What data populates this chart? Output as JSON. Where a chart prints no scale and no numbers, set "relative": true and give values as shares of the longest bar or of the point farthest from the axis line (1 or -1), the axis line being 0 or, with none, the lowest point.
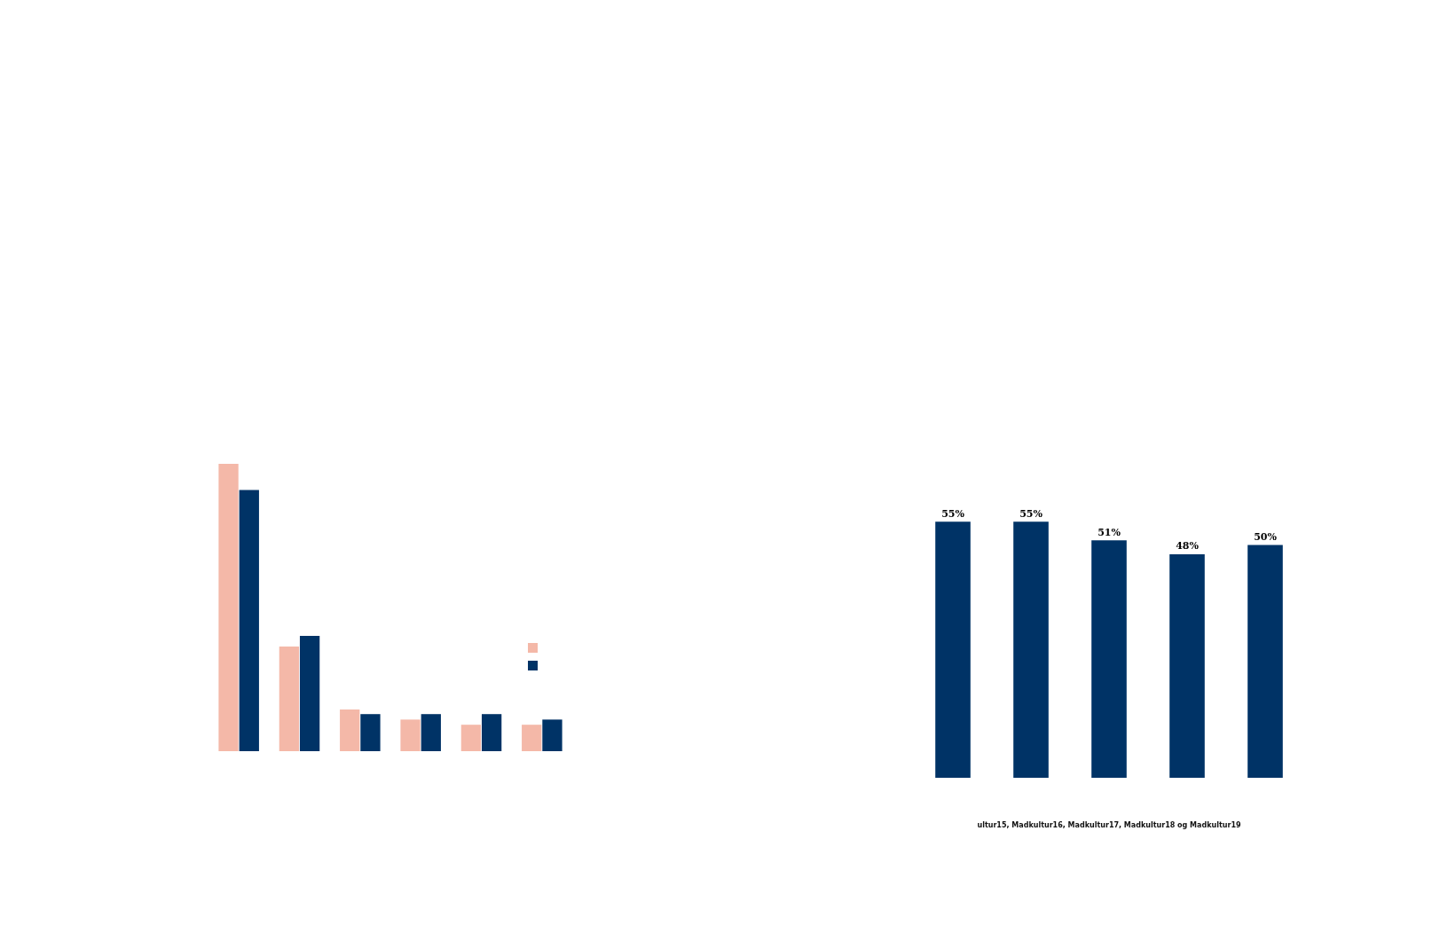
{
  "chart_data": [
    {
      "type": "bar",
      "relative": true,
      "categories": [
        null,
        null,
        null,
        null,
        null,
        null
      ],
      "series": [
        {
          "color": "#f4b8a8",
          "values": [
            1,
            0.364,
            0.145,
            0.11,
            0.092,
            0.092
          ]
        },
        {
          "color": "#003366",
          "values": [
            0.909,
            0.401,
            0.129,
            0.129,
            0.129,
            0.11
          ]
        }
      ]
    },
    {
      "type": "bar",
      "tick_labels": false,
      "categories": [
        null,
        null,
        null,
        null,
        null
      ],
      "values": [
        55,
        55,
        51,
        48,
        50
      ],
      "color": "#003366",
      "value_labels": [
        "55%",
        "55%",
        "51%",
        "48%",
        "50%"
      ],
      "annotations": [
        "ultur15, Madkultur16, Madkultur17, Madkultur18 og Madkultur19"
      ]
    }
  ]
}
